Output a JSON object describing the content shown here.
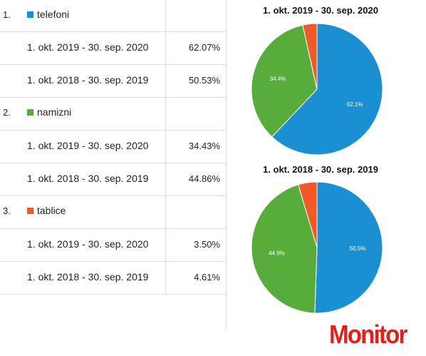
{
  "categories": [
    {
      "num": "1.",
      "label": "telefoni",
      "color": "#1a8fd1",
      "rows": [
        {
          "period": "1. okt. 2019 - 30. sep. 2020",
          "value": "62.07%"
        },
        {
          "period": "1. okt. 2018 - 30. sep. 2019",
          "value": "50.53%"
        }
      ]
    },
    {
      "num": "2.",
      "label": "namizni",
      "color": "#57ac3c",
      "rows": [
        {
          "period": "1. okt. 2019 - 30. sep. 2020",
          "value": "34.43%"
        },
        {
          "period": "1. okt. 2018 - 30. sep. 2019",
          "value": "44.86%"
        }
      ]
    },
    {
      "num": "3.",
      "label": "tablice",
      "color": "#ef5a28",
      "rows": [
        {
          "period": "1. okt. 2019 - 30. sep. 2020",
          "value": "3.50%"
        },
        {
          "period": "1. okt. 2018 - 30. sep. 2019",
          "value": "4.61%"
        }
      ]
    }
  ],
  "chart_data": [
    {
      "type": "pie",
      "title": "1. okt. 2019 - 30. sep. 2020",
      "categories": [
        "telefoni",
        "namizni",
        "tablice"
      ],
      "values": [
        62.07,
        34.43,
        3.5
      ],
      "labels": [
        "62.1%",
        "34.4%",
        ""
      ],
      "colors": [
        "#1a8fd1",
        "#57ac3c",
        "#ef5a28"
      ]
    },
    {
      "type": "pie",
      "title": "1. okt. 2018 - 30. sep. 2019",
      "categories": [
        "telefoni",
        "namizni",
        "tablice"
      ],
      "values": [
        50.53,
        44.86,
        4.61
      ],
      "labels": [
        "50.5%",
        "44.9%",
        ""
      ],
      "colors": [
        "#1a8fd1",
        "#57ac3c",
        "#ef5a28"
      ]
    }
  ],
  "logo": "Monitor"
}
